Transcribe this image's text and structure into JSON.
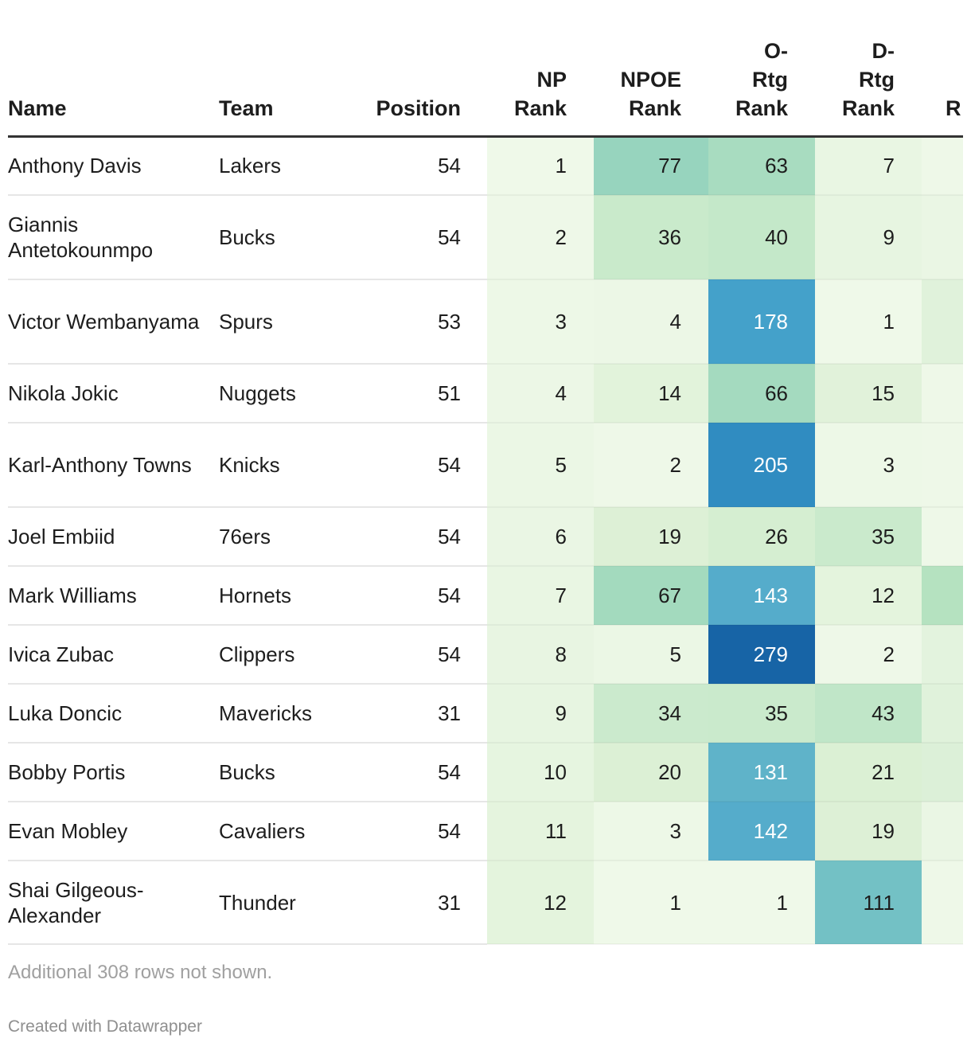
{
  "columns": {
    "name": "Name",
    "team": "Team",
    "position": "Position",
    "np_rank": "NP Rank",
    "npoe_rank": "NPOE Rank",
    "ortg_rank": "O-Rtg Rank",
    "drtg_rank": "D-Rtg Rank",
    "cropped": "R"
  },
  "rows": [
    {
      "name": "Anthony Davis",
      "team": "Lakers",
      "position": "54",
      "np": "1",
      "npoe": "77",
      "ortg": "63",
      "drtg": "7",
      "cropped_color": "#eef8e8"
    },
    {
      "name": "Giannis Antetokounmpo",
      "team": "Bucks",
      "position": "54",
      "np": "2",
      "npoe": "36",
      "ortg": "40",
      "drtg": "9",
      "cropped_color": "#eaf6e4"
    },
    {
      "name": "Victor Wembanyama",
      "team": "Spurs",
      "position": "53",
      "np": "3",
      "npoe": "4",
      "ortg": "178",
      "drtg": "1",
      "cropped_color": "#e0f2db"
    },
    {
      "name": "Nikola Jokic",
      "team": "Nuggets",
      "position": "51",
      "np": "4",
      "npoe": "14",
      "ortg": "66",
      "drtg": "15",
      "cropped_color": "#eef8e8"
    },
    {
      "name": "Karl-Anthony Towns",
      "team": "Knicks",
      "position": "54",
      "np": "5",
      "npoe": "2",
      "ortg": "205",
      "drtg": "3",
      "cropped_color": "#eef8e8"
    },
    {
      "name": "Joel Embiid",
      "team": "76ers",
      "position": "54",
      "np": "6",
      "npoe": "19",
      "ortg": "26",
      "drtg": "35",
      "cropped_color": "#eef8e8"
    },
    {
      "name": "Mark Williams",
      "team": "Hornets",
      "position": "54",
      "np": "7",
      "npoe": "67",
      "ortg": "143",
      "drtg": "12",
      "cropped_color": "#b5e2c0"
    },
    {
      "name": "Ivica Zubac",
      "team": "Clippers",
      "position": "54",
      "np": "8",
      "npoe": "5",
      "ortg": "279",
      "drtg": "2",
      "cropped_color": "#e3f3de"
    },
    {
      "name": "Luka Doncic",
      "team": "Mavericks",
      "position": "31",
      "np": "9",
      "npoe": "34",
      "ortg": "35",
      "drtg": "43",
      "cropped_color": "#e0f2db"
    },
    {
      "name": "Bobby Portis",
      "team": "Bucks",
      "position": "54",
      "np": "10",
      "npoe": "20",
      "ortg": "131",
      "drtg": "21",
      "cropped_color": "#dcf0d8"
    },
    {
      "name": "Evan Mobley",
      "team": "Cavaliers",
      "position": "54",
      "np": "11",
      "npoe": "3",
      "ortg": "142",
      "drtg": "19",
      "cropped_color": "#eaf6e4"
    },
    {
      "name": "Shai Gilgeous-Alexander",
      "team": "Thunder",
      "position": "31",
      "np": "12",
      "npoe": "1",
      "ortg": "1",
      "drtg": "111",
      "cropped_color": "#eef8e8"
    }
  ],
  "footer_note": "Additional 308 rows not shown.",
  "credit": "Created with Datawrapper"
}
